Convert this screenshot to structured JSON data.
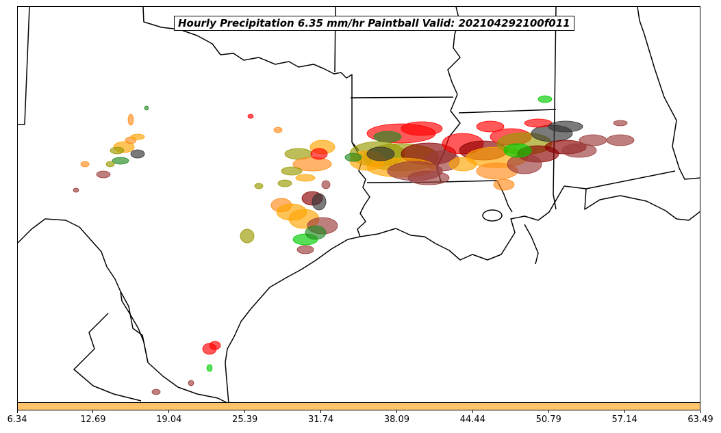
{
  "title": "Hourly Precipitation 6.35 mm/hr Paintball Valid: 202104292100f011",
  "colorbar": {
    "color": "#ffc36b",
    "ticks": [
      "6.34",
      "12.69",
      "19.04",
      "25.39",
      "31.74",
      "38.09",
      "44.44",
      "50.79",
      "57.14",
      "63.49"
    ]
  },
  "colors": {
    "member_colors": [
      "#ff0000",
      "#ff8c1a",
      "#ffa500",
      "#999900",
      "#00cc00",
      "#228b22",
      "#8b0000",
      "#9b3b3b",
      "#333333"
    ]
  }
}
